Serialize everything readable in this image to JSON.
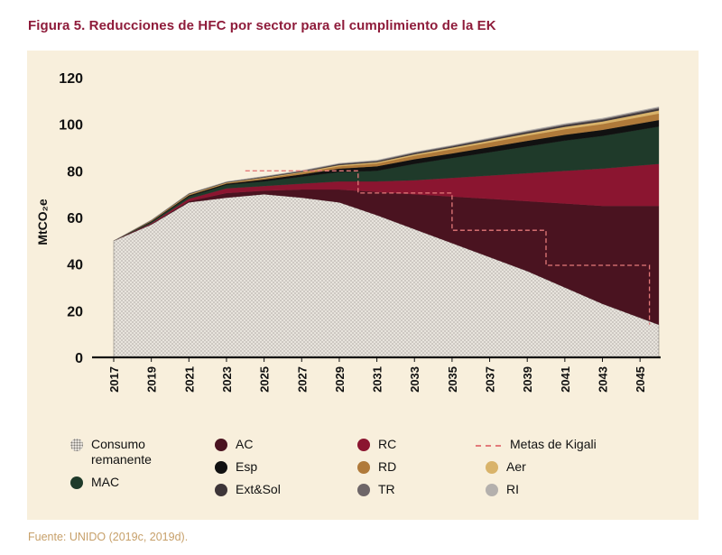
{
  "figure": {
    "title": "Figura 5. Reducciones de HFC por sector para el cumplimiento de la EK",
    "source": "Fuente: UNIDO (2019c, 2019d)."
  },
  "chart_data": {
    "type": "area",
    "stacked": true,
    "ylabel": "MtCO₂e",
    "ylim": [
      0,
      120
    ],
    "yticks": [
      "0",
      "20",
      "40",
      "60",
      "80",
      "100",
      "120"
    ],
    "xlim": [
      2017,
      2046
    ],
    "xticks": [
      "2017",
      "2019",
      "2021",
      "2023",
      "2025",
      "2027",
      "2029",
      "2031",
      "2033",
      "2035",
      "2037",
      "2039",
      "2041",
      "2043",
      "2045"
    ],
    "x": [
      2017,
      2019,
      2021,
      2023,
      2025,
      2027,
      2029,
      2031,
      2033,
      2035,
      2037,
      2039,
      2041,
      2043,
      2046
    ],
    "series": [
      {
        "name": "Consumo remanente",
        "color": "#e6e1d9",
        "pattern": "dots",
        "values": [
          50,
          57,
          66.5,
          68.5,
          70,
          68.5,
          66.5,
          61,
          55,
          49,
          43,
          37,
          30,
          23,
          14
        ]
      },
      {
        "name": "AC",
        "color": "#4a1320",
        "values": [
          0,
          0.3,
          0.5,
          2,
          1.5,
          3.5,
          5.5,
          10,
          15,
          20,
          25,
          30,
          36,
          42,
          51
        ]
      },
      {
        "name": "RC",
        "color": "#8b1530",
        "values": [
          0,
          0.3,
          1,
          2,
          2,
          2.5,
          3.5,
          4.5,
          6,
          8,
          10,
          12,
          14,
          16,
          18
        ]
      },
      {
        "name": "MAC",
        "color": "#1f3a2a",
        "values": [
          0,
          0.5,
          1,
          1.5,
          2,
          3,
          4,
          4.5,
          7,
          8.5,
          10,
          11.5,
          13,
          14,
          16
        ]
      },
      {
        "name": "Esp",
        "color": "#111111",
        "values": [
          0,
          0.3,
          0.5,
          0.5,
          0.8,
          1,
          1.5,
          2,
          2,
          2,
          2.2,
          2.4,
          2.5,
          2.6,
          2.8
        ]
      },
      {
        "name": "RD",
        "color": "#b07a3a",
        "values": [
          0,
          0.2,
          0.3,
          0.3,
          0.5,
          0.7,
          1,
          1.2,
          1.5,
          1.8,
          2,
          2.2,
          2.4,
          2.5,
          2.8
        ]
      },
      {
        "name": "Aer",
        "color": "#d9b36a",
        "values": [
          0,
          0.1,
          0.2,
          0.2,
          0.3,
          0.3,
          0.5,
          0.5,
          0.6,
          0.7,
          0.8,
          0.9,
          1,
          1.1,
          1.3
        ]
      },
      {
        "name": "Ext&Sol",
        "color": "#3d3538",
        "values": [
          0,
          0.1,
          0.2,
          0.2,
          0.3,
          0.3,
          0.4,
          0.4,
          0.5,
          0.5,
          0.6,
          0.6,
          0.7,
          0.7,
          0.8
        ]
      },
      {
        "name": "TR",
        "color": "#6e6668",
        "values": [
          0,
          0.1,
          0.1,
          0.1,
          0.2,
          0.2,
          0.2,
          0.3,
          0.3,
          0.3,
          0.3,
          0.4,
          0.4,
          0.4,
          0.5
        ]
      },
      {
        "name": "RI",
        "color": "#b4b0ad",
        "values": [
          0,
          0.1,
          0.1,
          0.1,
          0.1,
          0.2,
          0.2,
          0.2,
          0.2,
          0.2,
          0.3,
          0.3,
          0.3,
          0.3,
          0.3
        ]
      }
    ],
    "kigali_targets": {
      "name": "Metas de Kigali",
      "color": "#e37a7a",
      "points": [
        [
          2024,
          80
        ],
        [
          2030,
          80
        ],
        [
          2030,
          70.5
        ],
        [
          2035,
          70.5
        ],
        [
          2035,
          54.5
        ],
        [
          2040,
          54.5
        ],
        [
          2040,
          39.5
        ],
        [
          2045.5,
          39.5
        ],
        [
          2045.5,
          14
        ]
      ]
    },
    "legend": [
      {
        "name": "Consumo remanente",
        "color": "#e6e1d9",
        "pattern": "dots"
      },
      {
        "name": "MAC",
        "color": "#1f3a2a"
      },
      {
        "name": "AC",
        "color": "#4a1320"
      },
      {
        "name": "Esp",
        "color": "#111111"
      },
      {
        "name": "Ext&Sol",
        "color": "#3d3538"
      },
      {
        "name": "RC",
        "color": "#8b1530"
      },
      {
        "name": "RD",
        "color": "#b07a3a"
      },
      {
        "name": "TR",
        "color": "#6e6668"
      },
      {
        "name": "Metas de Kigali",
        "color": "#e37a7a",
        "pattern": "dashed-line"
      },
      {
        "name": "Aer",
        "color": "#d9b36a"
      },
      {
        "name": "RI",
        "color": "#b4b0ad"
      }
    ]
  }
}
